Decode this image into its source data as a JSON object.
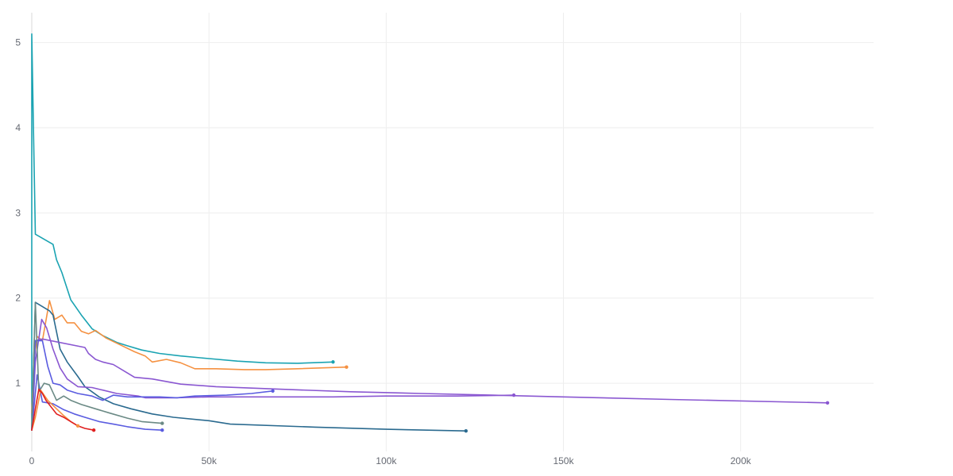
{
  "chart_data": {
    "type": "line",
    "title": "",
    "xlabel": "",
    "ylabel": "",
    "xlim": [
      0,
      237500
    ],
    "ylim": [
      0.2,
      5.35
    ],
    "grid": true,
    "legend": "none",
    "x_ticks": [
      {
        "value": 0,
        "label": "0"
      },
      {
        "value": 50000,
        "label": "50k"
      },
      {
        "value": 100000,
        "label": "100k"
      },
      {
        "value": 150000,
        "label": "150k"
      },
      {
        "value": 200000,
        "label": "200k"
      }
    ],
    "y_ticks": [
      {
        "value": 1,
        "label": "1"
      },
      {
        "value": 2,
        "label": "2"
      },
      {
        "value": 3,
        "label": "3"
      },
      {
        "value": 4,
        "label": "4"
      },
      {
        "value": 5,
        "label": "5"
      }
    ],
    "series": [
      {
        "color": "#1aa3b2",
        "points": [
          [
            0,
            0.45
          ],
          [
            0,
            5.1
          ],
          [
            1000,
            2.75
          ],
          [
            6000,
            2.63
          ],
          [
            7000,
            2.45
          ],
          [
            8500,
            2.3
          ],
          [
            11000,
            1.98
          ],
          [
            14000,
            1.8
          ],
          [
            17000,
            1.64
          ],
          [
            20000,
            1.56
          ],
          [
            24000,
            1.48
          ],
          [
            27000,
            1.44
          ],
          [
            31000,
            1.39
          ],
          [
            36000,
            1.35
          ],
          [
            42000,
            1.32
          ],
          [
            50000,
            1.29
          ],
          [
            58000,
            1.26
          ],
          [
            66000,
            1.24
          ],
          [
            75000,
            1.235
          ],
          [
            85000,
            1.25
          ]
        ]
      },
      {
        "color": "#f59141",
        "points": [
          [
            0,
            0.65
          ],
          [
            600,
            1.25
          ],
          [
            1500,
            1.55
          ],
          [
            3000,
            1.5
          ],
          [
            5000,
            1.97
          ],
          [
            6500,
            1.75
          ],
          [
            8500,
            1.8
          ],
          [
            10000,
            1.71
          ],
          [
            12000,
            1.71
          ],
          [
            14000,
            1.61
          ],
          [
            16000,
            1.58
          ],
          [
            18000,
            1.62
          ],
          [
            21000,
            1.53
          ],
          [
            25000,
            1.45
          ],
          [
            29000,
            1.37
          ],
          [
            32000,
            1.32
          ],
          [
            34000,
            1.25
          ],
          [
            38000,
            1.28
          ],
          [
            42000,
            1.24
          ],
          [
            46000,
            1.17
          ],
          [
            52000,
            1.17
          ],
          [
            60000,
            1.16
          ],
          [
            66000,
            1.16
          ],
          [
            75000,
            1.17
          ],
          [
            88800,
            1.19
          ]
        ]
      },
      {
        "color": "#2a6a8f",
        "points": [
          [
            0,
            0.45
          ],
          [
            1000,
            1.95
          ],
          [
            5000,
            1.85
          ],
          [
            6000,
            1.8
          ],
          [
            8000,
            1.4
          ],
          [
            10000,
            1.25
          ],
          [
            13000,
            1.08
          ],
          [
            15000,
            0.96
          ],
          [
            19000,
            0.84
          ],
          [
            23000,
            0.76
          ],
          [
            28000,
            0.7
          ],
          [
            34000,
            0.64
          ],
          [
            40000,
            0.6
          ],
          [
            50000,
            0.56
          ],
          [
            56000,
            0.52
          ],
          [
            80000,
            0.485
          ],
          [
            100000,
            0.46
          ],
          [
            122500,
            0.44
          ]
        ]
      },
      {
        "color": "#8a57d1",
        "points": [
          [
            0,
            0.45
          ],
          [
            1000,
            1.5
          ],
          [
            3000,
            1.52
          ],
          [
            15000,
            1.42
          ],
          [
            16000,
            1.35
          ],
          [
            18000,
            1.28
          ],
          [
            20000,
            1.25
          ],
          [
            23000,
            1.22
          ],
          [
            27000,
            1.12
          ],
          [
            29000,
            1.07
          ],
          [
            34000,
            1.05
          ],
          [
            42000,
            0.99
          ],
          [
            52000,
            0.96
          ],
          [
            70000,
            0.93
          ],
          [
            90000,
            0.9
          ],
          [
            110000,
            0.88
          ],
          [
            130000,
            0.86
          ],
          [
            150000,
            0.84
          ],
          [
            180000,
            0.81
          ],
          [
            224500,
            0.77
          ]
        ]
      },
      {
        "color": "#8a57d1",
        "points": [
          [
            0,
            0.45
          ],
          [
            1000,
            1.25
          ],
          [
            2800,
            1.75
          ],
          [
            4200,
            1.65
          ],
          [
            6000,
            1.4
          ],
          [
            8000,
            1.18
          ],
          [
            10000,
            1.05
          ],
          [
            13000,
            0.96
          ],
          [
            17000,
            0.95
          ],
          [
            20000,
            0.92
          ],
          [
            24000,
            0.88
          ],
          [
            30000,
            0.85
          ],
          [
            32000,
            0.83
          ],
          [
            40000,
            0.83
          ],
          [
            50000,
            0.84
          ],
          [
            60000,
            0.84
          ],
          [
            75000,
            0.84
          ],
          [
            85000,
            0.84
          ],
          [
            100000,
            0.85
          ],
          [
            120000,
            0.85
          ],
          [
            136000,
            0.86
          ]
        ]
      },
      {
        "color": "#5a5ce0",
        "points": [
          [
            0,
            0.45
          ],
          [
            1000,
            1.5
          ],
          [
            3000,
            1.5
          ],
          [
            4500,
            1.2
          ],
          [
            6000,
            1.0
          ],
          [
            8000,
            0.98
          ],
          [
            10000,
            0.92
          ],
          [
            13000,
            0.88
          ],
          [
            17000,
            0.85
          ],
          [
            20000,
            0.8
          ],
          [
            23000,
            0.86
          ],
          [
            27000,
            0.84
          ],
          [
            31000,
            0.84
          ],
          [
            36000,
            0.84
          ],
          [
            41000,
            0.83
          ],
          [
            46000,
            0.85
          ],
          [
            55000,
            0.86
          ],
          [
            62000,
            0.88
          ],
          [
            68000,
            0.91
          ]
        ]
      },
      {
        "color": "#5a5ce0",
        "points": [
          [
            0,
            0.45
          ],
          [
            1500,
            1.1
          ],
          [
            3000,
            0.78
          ],
          [
            6000,
            0.76
          ],
          [
            9000,
            0.69
          ],
          [
            12000,
            0.64
          ],
          [
            15000,
            0.6
          ],
          [
            19000,
            0.55
          ],
          [
            23000,
            0.52
          ],
          [
            27000,
            0.49
          ],
          [
            32000,
            0.46
          ],
          [
            36800,
            0.45
          ]
        ]
      },
      {
        "color": "#6b8a85",
        "points": [
          [
            0,
            0.45
          ],
          [
            1000,
            1.95
          ],
          [
            2000,
            0.9
          ],
          [
            3500,
            1.0
          ],
          [
            5000,
            0.98
          ],
          [
            7000,
            0.8
          ],
          [
            9000,
            0.85
          ],
          [
            11000,
            0.8
          ],
          [
            14000,
            0.75
          ],
          [
            18000,
            0.7
          ],
          [
            22000,
            0.65
          ],
          [
            27000,
            0.59
          ],
          [
            31000,
            0.55
          ],
          [
            36800,
            0.53
          ]
        ]
      },
      {
        "color": "#f59141",
        "points": [
          [
            0,
            0.45
          ],
          [
            1000,
            0.6
          ],
          [
            2500,
            0.92
          ],
          [
            4500,
            0.8
          ],
          [
            7000,
            0.7
          ],
          [
            9000,
            0.62
          ],
          [
            11000,
            0.55
          ],
          [
            13000,
            0.5
          ]
        ]
      },
      {
        "color": "#e01f1f",
        "points": [
          [
            0,
            0.45
          ],
          [
            1000,
            0.7
          ],
          [
            2000,
            0.93
          ],
          [
            3000,
            0.88
          ],
          [
            4000,
            0.8
          ],
          [
            5500,
            0.72
          ],
          [
            7000,
            0.64
          ],
          [
            9000,
            0.6
          ],
          [
            11000,
            0.55
          ],
          [
            13000,
            0.5
          ],
          [
            15000,
            0.47
          ],
          [
            17500,
            0.45
          ]
        ]
      }
    ]
  }
}
